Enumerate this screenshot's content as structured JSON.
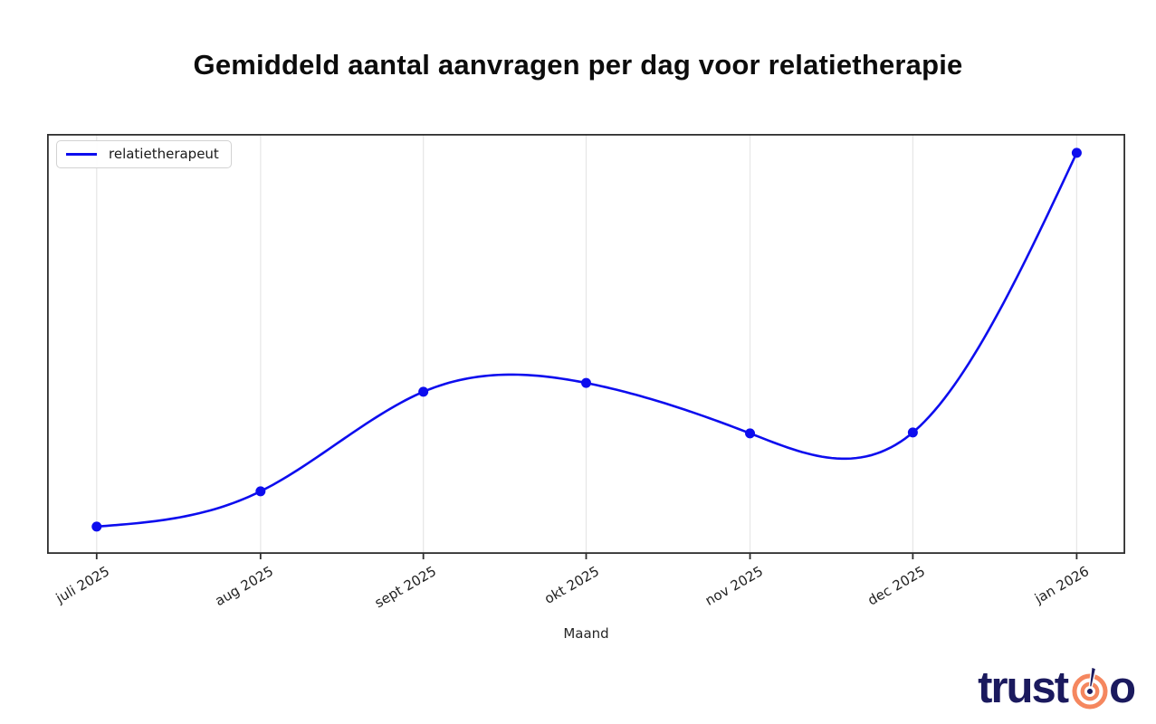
{
  "header": {
    "title": "Gemiddeld aantal aanvragen per dag voor relatietherapie"
  },
  "chart_data": {
    "type": "line",
    "title": "Gemiddeld aantal aanvragen per dag voor relatietherapie",
    "xlabel": "Maand",
    "ylabel": "",
    "categories": [
      "juli 2025",
      "aug 2025",
      "sept 2025",
      "okt 2025",
      "nov 2025",
      "dec 2025",
      "jan 2026"
    ],
    "series": [
      {
        "name": "relatietherapeut",
        "color": "#0d0dee",
        "values_norm_0_to_1": [
          0.02,
          0.11,
          0.37,
          0.4,
          0.27,
          0.27,
          1.0
        ],
        "x_frac": [
          0.046,
          0.198,
          0.349,
          0.5,
          0.652,
          0.803,
          0.955
        ],
        "y_frac": [
          0.065,
          0.149,
          0.386,
          0.407,
          0.287,
          0.289,
          0.955
        ]
      }
    ],
    "y_axis": "unlabeled (no ticks or values shown)",
    "legend": {
      "position": "upper-left",
      "entries": [
        "relatietherapeut"
      ]
    },
    "grid": "vertical gridlines at each month tick only",
    "line_style": "smooth cubic spline with round markers",
    "markers": true
  },
  "footer": {
    "logo_text_left": "trust",
    "logo_text_right": "o"
  },
  "colors": {
    "line": "#0d0dee",
    "axis": "#2e2e2e",
    "grid": "#e6e6e6",
    "tick_label": "#202020",
    "logo_navy": "#1b1a5e",
    "logo_orange": "#f5875f"
  }
}
